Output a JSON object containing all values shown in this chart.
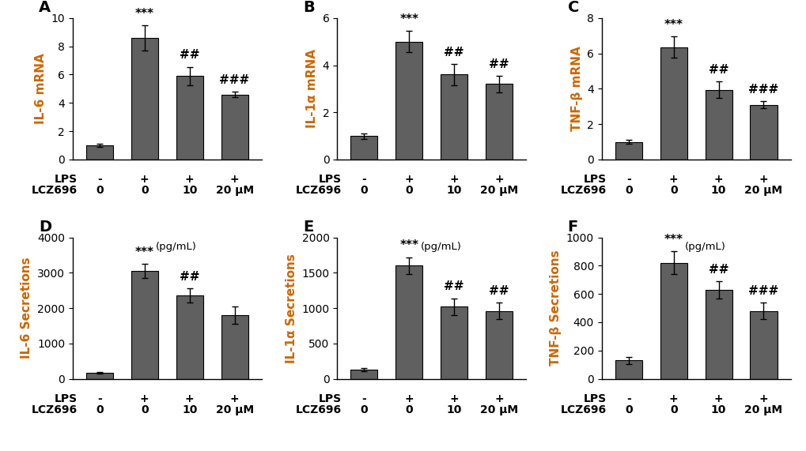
{
  "panels": [
    {
      "label": "A",
      "ylabel": "IL-6 mRNA",
      "ylim": [
        0,
        10
      ],
      "yticks": [
        0,
        2,
        4,
        6,
        8,
        10
      ],
      "bar_values": [
        1.0,
        8.6,
        5.9,
        4.6
      ],
      "bar_errors": [
        0.12,
        0.9,
        0.65,
        0.2
      ],
      "annotations": [
        "",
        "***",
        "##",
        "###"
      ],
      "row": 0
    },
    {
      "label": "B",
      "ylabel": "IL-1α mRNA",
      "ylim": [
        0,
        6
      ],
      "yticks": [
        0,
        2,
        4,
        6
      ],
      "bar_values": [
        1.0,
        5.0,
        3.6,
        3.2
      ],
      "bar_errors": [
        0.12,
        0.45,
        0.45,
        0.35
      ],
      "annotations": [
        "",
        "***",
        "##",
        "##"
      ],
      "row": 0
    },
    {
      "label": "C",
      "ylabel": "TNF-β mRNA",
      "ylim": [
        0,
        8
      ],
      "yticks": [
        0,
        2,
        4,
        6,
        8
      ],
      "bar_values": [
        1.0,
        6.35,
        3.95,
        3.1
      ],
      "bar_errors": [
        0.12,
        0.6,
        0.45,
        0.2
      ],
      "annotations": [
        "",
        "***",
        "##",
        "###"
      ],
      "row": 0
    },
    {
      "label": "D",
      "ylabel": "IL-6 Secretions",
      "subtitle": "(pg/mL)",
      "ylim": [
        0,
        4000
      ],
      "yticks": [
        0,
        1000,
        2000,
        3000,
        4000
      ],
      "bar_values": [
        170,
        3050,
        2350,
        1800
      ],
      "bar_errors": [
        30,
        200,
        200,
        250
      ],
      "annotations": [
        "",
        "***",
        "##",
        ""
      ],
      "row": 1
    },
    {
      "label": "E",
      "ylabel": "IL-1α Secretions",
      "subtitle": "(pg/mL)",
      "ylim": [
        0,
        2000
      ],
      "yticks": [
        0,
        500,
        1000,
        1500,
        2000
      ],
      "bar_values": [
        130,
        1600,
        1020,
        960
      ],
      "bar_errors": [
        25,
        120,
        120,
        120
      ],
      "annotations": [
        "",
        "***",
        "##",
        "##"
      ],
      "row": 1
    },
    {
      "label": "F",
      "ylabel": "TNF-β Secretions",
      "subtitle": "(pg/mL)",
      "ylim": [
        0,
        1000
      ],
      "yticks": [
        0,
        200,
        400,
        600,
        800,
        1000
      ],
      "bar_values": [
        130,
        820,
        630,
        480
      ],
      "bar_errors": [
        25,
        80,
        60,
        60
      ],
      "annotations": [
        "",
        "***",
        "##",
        "###"
      ],
      "row": 1
    }
  ],
  "lps_labels": [
    "-",
    "+",
    "+",
    "+"
  ],
  "lcz_labels": [
    "0",
    "0",
    "10",
    "20 μM"
  ],
  "bar_color": "#606060",
  "bar_width": 0.6,
  "background_color": "#ffffff",
  "label_color": "#cc6600",
  "panel_label_fontsize": 14,
  "ylabel_fontsize": 11,
  "tick_fontsize": 10,
  "xtick_fontsize": 10,
  "annotation_fontsize": 11
}
